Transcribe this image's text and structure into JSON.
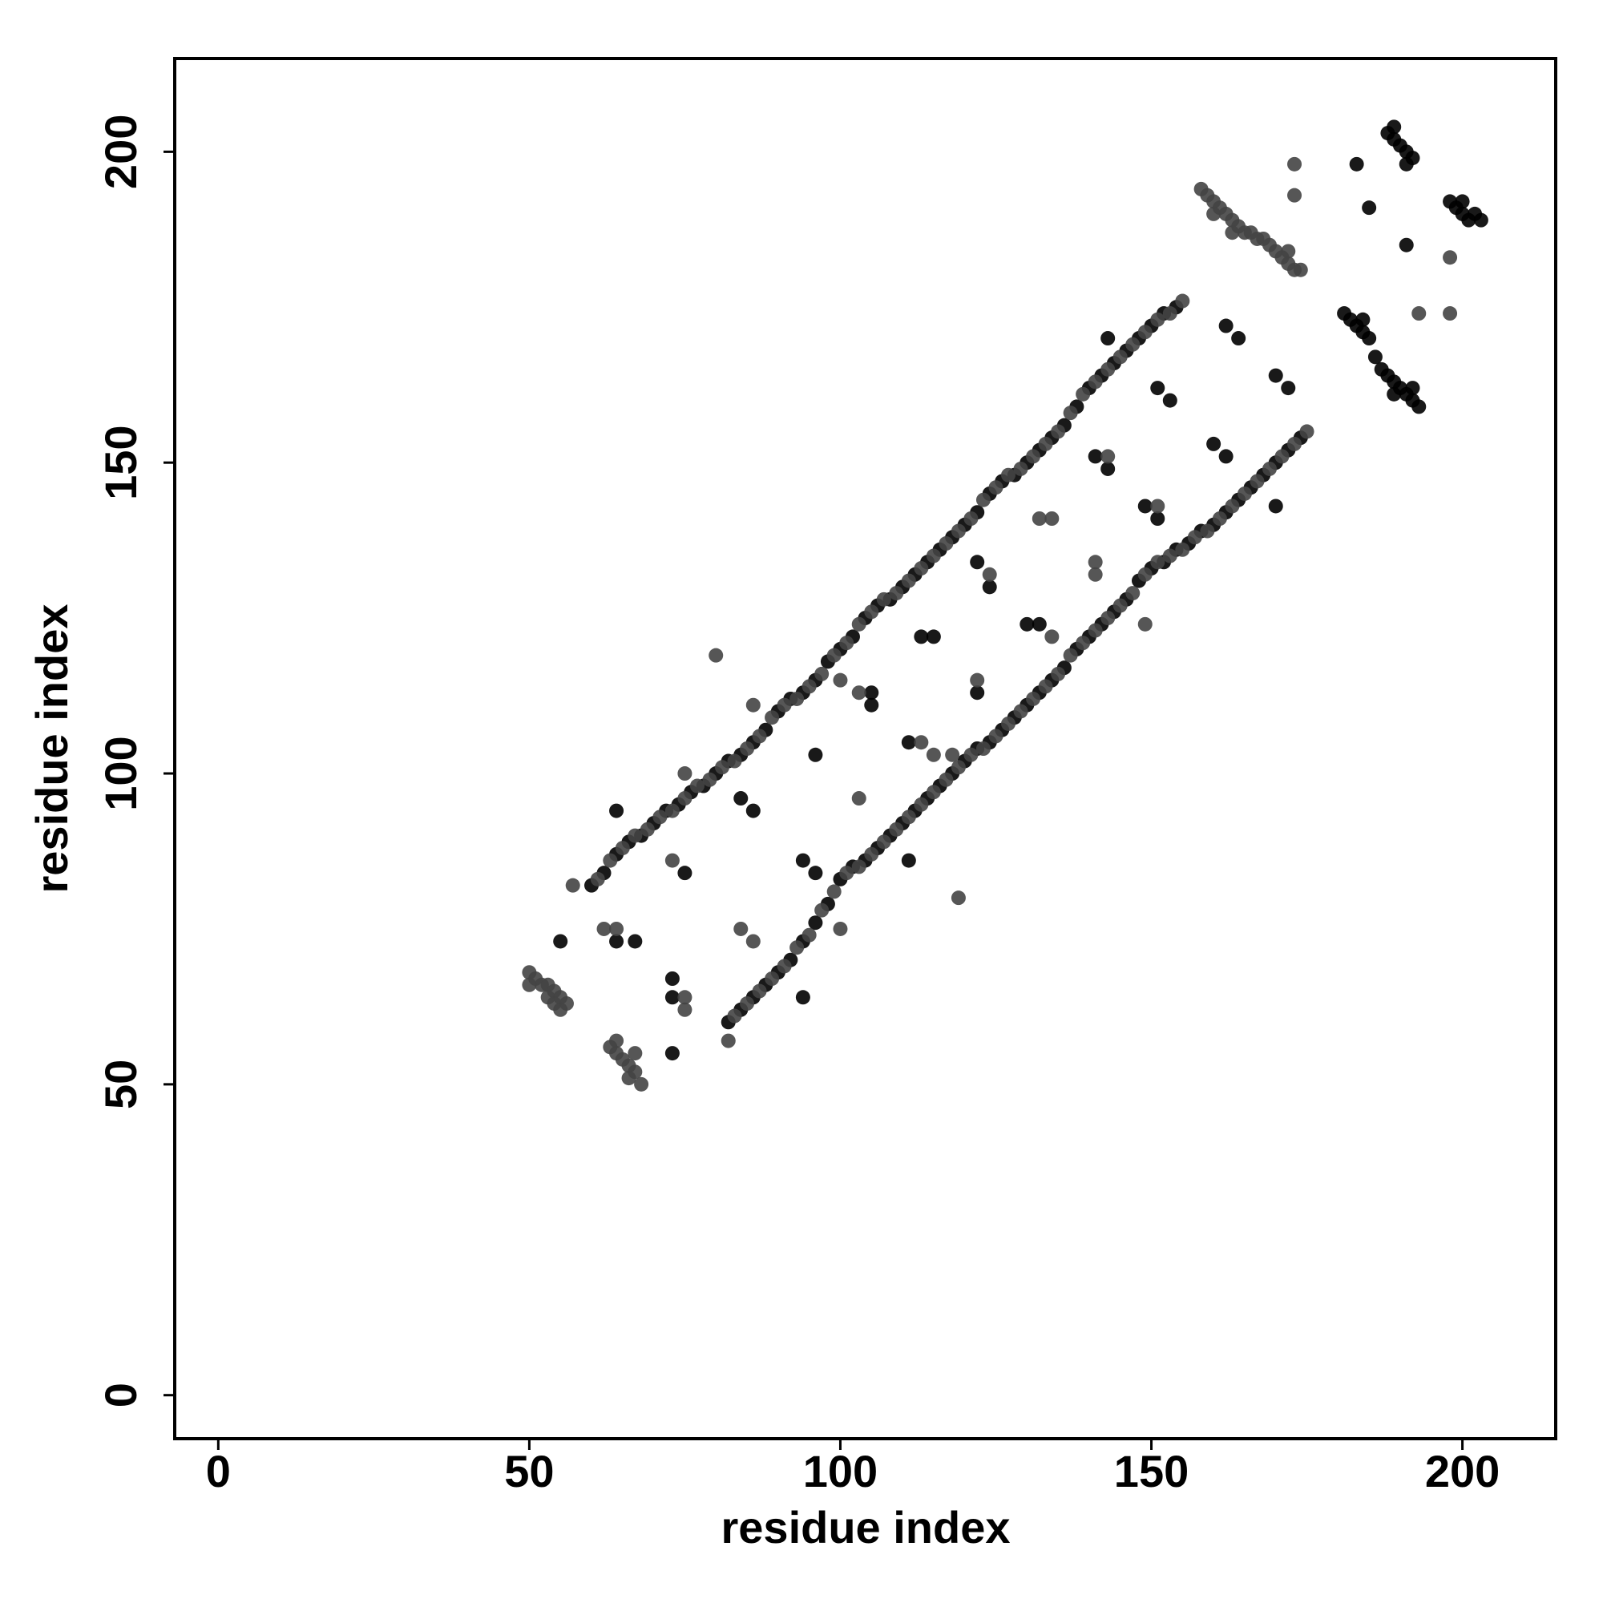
{
  "chart_data": {
    "type": "scatter",
    "xlabel": "residue index",
    "ylabel": "residue index",
    "xlim": [
      -7,
      215
    ],
    "ylim": [
      -7,
      215
    ],
    "xticks": [
      0,
      50,
      100,
      150,
      200
    ],
    "yticks": [
      0,
      50,
      100,
      150,
      200
    ],
    "grid": false,
    "series": [
      {
        "color": "#000000",
        "x": [
          60,
          62,
          64,
          66,
          68,
          70,
          72,
          74,
          76,
          78,
          80,
          82,
          84,
          86,
          88,
          90,
          92,
          94,
          96,
          98,
          100,
          102,
          104,
          106,
          108,
          110,
          112,
          114,
          116,
          118,
          120,
          122,
          124,
          126,
          128,
          130,
          132,
          134,
          136,
          138,
          140,
          142,
          144,
          146,
          148,
          150,
          152,
          154,
          82,
          84,
          86,
          88,
          90,
          92,
          94,
          96,
          98,
          100,
          102,
          104,
          106,
          108,
          110,
          112,
          114,
          116,
          118,
          120,
          122,
          124,
          126,
          128,
          130,
          132,
          134,
          136,
          138,
          140,
          142,
          144,
          146,
          148,
          150,
          152,
          154,
          156,
          158,
          160,
          162,
          164,
          166,
          168,
          170,
          172,
          174,
          188,
          189,
          190,
          191,
          192,
          189,
          191,
          198,
          199,
          200,
          201,
          202,
          203,
          200,
          181,
          182,
          183,
          184,
          185,
          186,
          187,
          188,
          189,
          190,
          191,
          192,
          193,
          184,
          189,
          192,
          64,
          55,
          64,
          67,
          75,
          73,
          73,
          73,
          84,
          86,
          96,
          94,
          96,
          94,
          105,
          105,
          111,
          113,
          115,
          111,
          122,
          124,
          122,
          130,
          132,
          141,
          143,
          149,
          151,
          143,
          151,
          153,
          160,
          162,
          162,
          164,
          170,
          172,
          170,
          183,
          185,
          191
        ],
        "values": [
          82,
          84,
          87,
          89,
          90,
          92,
          94,
          95,
          97,
          98,
          100,
          102,
          103,
          105,
          107,
          110,
          112,
          113,
          115,
          118,
          120,
          122,
          125,
          127,
          128,
          130,
          132,
          134,
          136,
          138,
          140,
          142,
          145,
          147,
          148,
          150,
          152,
          154,
          156,
          159,
          162,
          164,
          166,
          168,
          170,
          172,
          174,
          175,
          60,
          62,
          64,
          66,
          68,
          70,
          73,
          76,
          79,
          83,
          85,
          86,
          88,
          90,
          92,
          94,
          96,
          98,
          100,
          102,
          104,
          105,
          107,
          109,
          111,
          113,
          115,
          117,
          120,
          122,
          124,
          126,
          128,
          131,
          133,
          134,
          136,
          137,
          139,
          140,
          142,
          144,
          146,
          148,
          150,
          152,
          154,
          203,
          202,
          201,
          200,
          199,
          204,
          198,
          192,
          191,
          190,
          189,
          190,
          189,
          192,
          174,
          173,
          172,
          171,
          170,
          167,
          165,
          164,
          163,
          162,
          161,
          160,
          159,
          173,
          161,
          162,
          94,
          73,
          73,
          73,
          84,
          67,
          64,
          55,
          96,
          94,
          84,
          86,
          103,
          64,
          113,
          111,
          105,
          122,
          122,
          86,
          113,
          130,
          134,
          124,
          124,
          151,
          149,
          143,
          141,
          170,
          162,
          160,
          153,
          151,
          172,
          170,
          164,
          162,
          143,
          198,
          191,
          185
        ]
      },
      {
        "color": "#444444",
        "x": [
          61,
          63,
          65,
          67,
          69,
          71,
          73,
          75,
          77,
          79,
          81,
          83,
          85,
          87,
          89,
          91,
          93,
          95,
          97,
          99,
          101,
          103,
          105,
          107,
          109,
          111,
          113,
          115,
          117,
          119,
          121,
          123,
          125,
          127,
          129,
          131,
          133,
          135,
          137,
          139,
          141,
          143,
          145,
          147,
          149,
          151,
          153,
          155,
          83,
          85,
          87,
          89,
          91,
          93,
          95,
          97,
          99,
          101,
          103,
          105,
          107,
          109,
          111,
          113,
          115,
          117,
          119,
          121,
          123,
          125,
          127,
          129,
          131,
          133,
          135,
          137,
          139,
          141,
          143,
          145,
          147,
          149,
          151,
          153,
          155,
          157,
          159,
          161,
          163,
          165,
          167,
          169,
          171,
          173,
          175,
          50,
          51,
          52,
          53,
          54,
          55,
          56,
          50,
          53,
          54,
          55,
          63,
          64,
          65,
          66,
          67,
          64,
          66,
          68,
          67,
          158,
          159,
          160,
          161,
          162,
          163,
          164,
          165,
          166,
          167,
          168,
          169,
          170,
          171,
          172,
          173,
          174,
          160,
          163,
          172,
          57,
          62,
          64,
          73,
          75,
          75,
          80,
          75,
          86,
          84,
          86,
          82,
          100,
          100,
          103,
          103,
          113,
          115,
          119,
          118,
          122,
          124,
          134,
          132,
          134,
          143,
          141,
          141,
          149,
          151,
          173,
          173,
          193,
          198,
          198
        ],
        "values": [
          83,
          86,
          88,
          90,
          91,
          93,
          94,
          96,
          98,
          99,
          101,
          102,
          104,
          106,
          109,
          111,
          112,
          114,
          116,
          119,
          121,
          124,
          126,
          128,
          129,
          131,
          133,
          135,
          137,
          139,
          141,
          144,
          146,
          148,
          149,
          151,
          153,
          155,
          158,
          161,
          163,
          165,
          167,
          169,
          171,
          173,
          174,
          176,
          61,
          63,
          65,
          67,
          69,
          72,
          74,
          78,
          81,
          84,
          85,
          87,
          89,
          91,
          93,
          95,
          97,
          99,
          101,
          103,
          104,
          106,
          108,
          110,
          112,
          114,
          116,
          119,
          121,
          123,
          125,
          127,
          129,
          132,
          134,
          135,
          136,
          138,
          139,
          141,
          143,
          145,
          147,
          149,
          151,
          153,
          155,
          68,
          67,
          66,
          66,
          65,
          64,
          63,
          66,
          64,
          63,
          62,
          56,
          55,
          54,
          53,
          52,
          57,
          51,
          50,
          55,
          194,
          193,
          192,
          191,
          190,
          189,
          188,
          187,
          187,
          186,
          186,
          185,
          184,
          183,
          182,
          181,
          181,
          190,
          187,
          184,
          82,
          75,
          75,
          86,
          64,
          62,
          119,
          100,
          111,
          75,
          73,
          57,
          75,
          115,
          113,
          96,
          105,
          103,
          80,
          103,
          115,
          132,
          122,
          141,
          141,
          151,
          134,
          132,
          124,
          143,
          198,
          193,
          174,
          183,
          174
        ]
      }
    ]
  }
}
